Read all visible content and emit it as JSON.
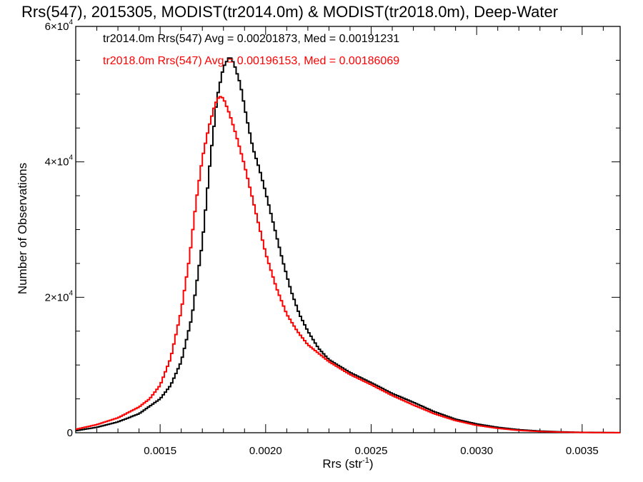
{
  "chart_data": {
    "type": "line",
    "title": "Rrs(547), 2015305, MODIST(tr2014.0m) & MODIST(tr2018.0m), Deep-Water",
    "xlabel": "Rrs (str",
    "xlabel_sup": "-1",
    "xlabel_close": ")",
    "ylabel": "Number of Observations",
    "xlim": [
      0.0011,
      0.00368
    ],
    "ylim": [
      0,
      60000
    ],
    "x_ticks": [
      0.0015,
      0.002,
      0.0025,
      0.003,
      0.0035
    ],
    "x_tick_labels": [
      "0.0015",
      "0.0020",
      "0.0025",
      "0.0030",
      "0.0035"
    ],
    "y_ticks": [
      0,
      20000,
      40000,
      60000
    ],
    "y_tick_labels": [
      {
        "base": "0",
        "exp": ""
      },
      {
        "base": "2×10",
        "exp": "4"
      },
      {
        "base": "4×10",
        "exp": "4"
      },
      {
        "base": "6×10",
        "exp": "4"
      }
    ],
    "grid": false,
    "legend_position": "top-left",
    "series": [
      {
        "name": "tr2014.0m",
        "label": "tr2014.0m Rrs(547) Avg = 0.00201873, Med = 0.00191231",
        "color": "#000000",
        "points": [
          [
            0.0011,
            300
          ],
          [
            0.0012,
            800
          ],
          [
            0.0013,
            1600
          ],
          [
            0.0014,
            2800
          ],
          [
            0.0015,
            5000
          ],
          [
            0.00155,
            7000
          ],
          [
            0.0016,
            10500
          ],
          [
            0.00165,
            17000
          ],
          [
            0.0017,
            28000
          ],
          [
            0.00174,
            41000
          ],
          [
            0.00177,
            49500
          ],
          [
            0.0018,
            54000
          ],
          [
            0.00183,
            55600
          ],
          [
            0.00185,
            54500
          ],
          [
            0.00188,
            51500
          ],
          [
            0.00191,
            46500
          ],
          [
            0.00194,
            42000
          ],
          [
            0.00197,
            39000
          ],
          [
            0.002,
            35500
          ],
          [
            0.00204,
            30500
          ],
          [
            0.00208,
            25500
          ],
          [
            0.00212,
            21000
          ],
          [
            0.00216,
            17500
          ],
          [
            0.0022,
            15000
          ],
          [
            0.00225,
            12500
          ],
          [
            0.0023,
            10800
          ],
          [
            0.0024,
            8900
          ],
          [
            0.0025,
            7400
          ],
          [
            0.0026,
            5800
          ],
          [
            0.0027,
            4500
          ],
          [
            0.0028,
            3100
          ],
          [
            0.0029,
            2000
          ],
          [
            0.003,
            1300
          ],
          [
            0.0031,
            800
          ],
          [
            0.0032,
            450
          ],
          [
            0.0033,
            250
          ],
          [
            0.0034,
            130
          ],
          [
            0.0035,
            60
          ],
          [
            0.00368,
            10
          ]
        ]
      },
      {
        "name": "tr2018.0m",
        "label": "tr2018.0m Rrs(547) Avg = 0.00196153, Med = 0.00186069",
        "color": "#ff0000",
        "points": [
          [
            0.0011,
            500
          ],
          [
            0.0012,
            1200
          ],
          [
            0.0013,
            2200
          ],
          [
            0.0014,
            3800
          ],
          [
            0.00145,
            5000
          ],
          [
            0.0015,
            7000
          ],
          [
            0.00155,
            11000
          ],
          [
            0.0016,
            18000
          ],
          [
            0.00164,
            26000
          ],
          [
            0.00167,
            34000
          ],
          [
            0.0017,
            40500
          ],
          [
            0.00173,
            45000
          ],
          [
            0.00176,
            48500
          ],
          [
            0.00178,
            49700
          ],
          [
            0.0018,
            49400
          ],
          [
            0.00183,
            47000
          ],
          [
            0.00186,
            44000
          ],
          [
            0.0019,
            39500
          ],
          [
            0.00195,
            33000
          ],
          [
            0.002,
            26500
          ],
          [
            0.00205,
            21500
          ],
          [
            0.0021,
            17500
          ],
          [
            0.00215,
            15000
          ],
          [
            0.0022,
            13000
          ],
          [
            0.0023,
            10500
          ],
          [
            0.0024,
            8600
          ],
          [
            0.0025,
            7100
          ],
          [
            0.0026,
            5500
          ],
          [
            0.0027,
            4100
          ],
          [
            0.0028,
            2800
          ],
          [
            0.0029,
            1800
          ],
          [
            0.003,
            1100
          ],
          [
            0.0031,
            650
          ],
          [
            0.0032,
            350
          ],
          [
            0.0033,
            180
          ],
          [
            0.0034,
            90
          ],
          [
            0.0035,
            40
          ],
          [
            0.00368,
            5
          ]
        ]
      }
    ]
  }
}
